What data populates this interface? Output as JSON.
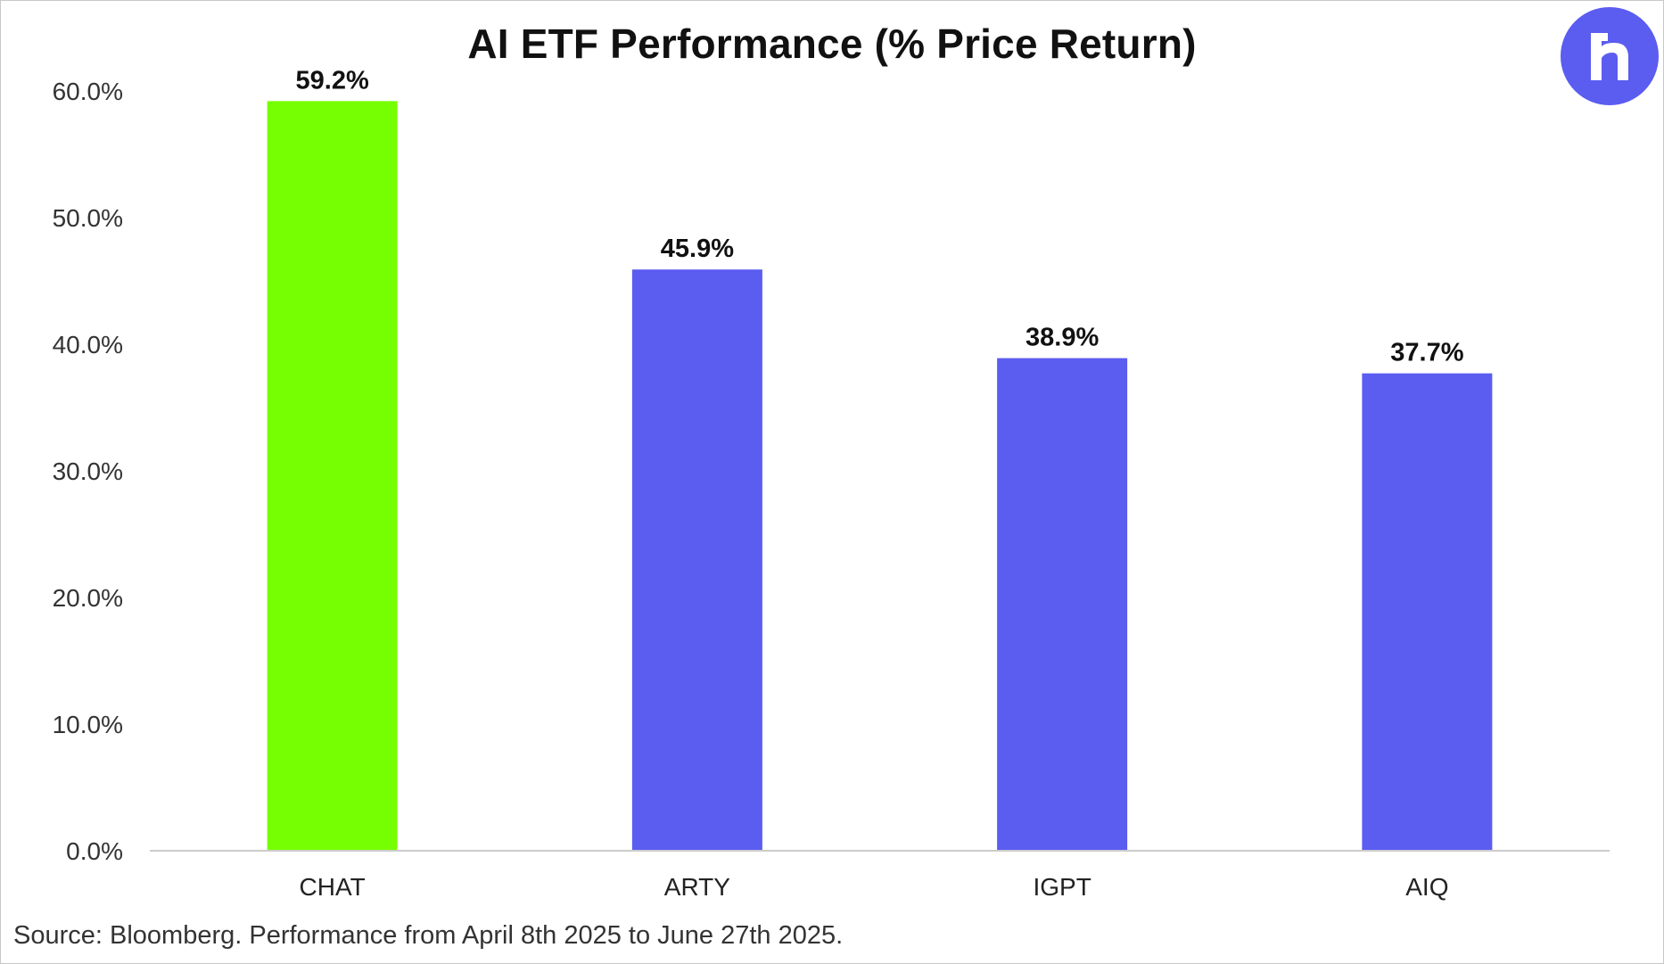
{
  "colors": {
    "highlight": "#76ff03",
    "bar": "#5b5cf0",
    "logo_bg": "#5b5cf0",
    "axis_line": "#cccccc",
    "text": "#111111"
  },
  "logo": {
    "icon": "brand-logo-icon"
  },
  "chart_data": {
    "type": "bar",
    "title": "AI ETF Performance (% Price Return)",
    "xlabel": "",
    "ylabel": "",
    "categories": [
      "CHAT",
      "ARTY",
      "IGPT",
      "AIQ"
    ],
    "values": [
      59.2,
      45.9,
      38.9,
      37.7
    ],
    "data_labels": [
      "59.2%",
      "45.9%",
      "38.9%",
      "37.7%"
    ],
    "bar_colors": [
      "#76ff03",
      "#5b5cf0",
      "#5b5cf0",
      "#5b5cf0"
    ],
    "ylim": [
      0,
      60
    ],
    "yticks": [
      0,
      10,
      20,
      30,
      40,
      50,
      60
    ],
    "ytick_labels": [
      "0.0%",
      "10.0%",
      "20.0%",
      "30.0%",
      "40.0%",
      "50.0%",
      "60.0%"
    ],
    "grid": false,
    "legend": "none"
  },
  "source_note": "Source: Bloomberg. Performance from April 8th 2025 to June 27th 2025."
}
